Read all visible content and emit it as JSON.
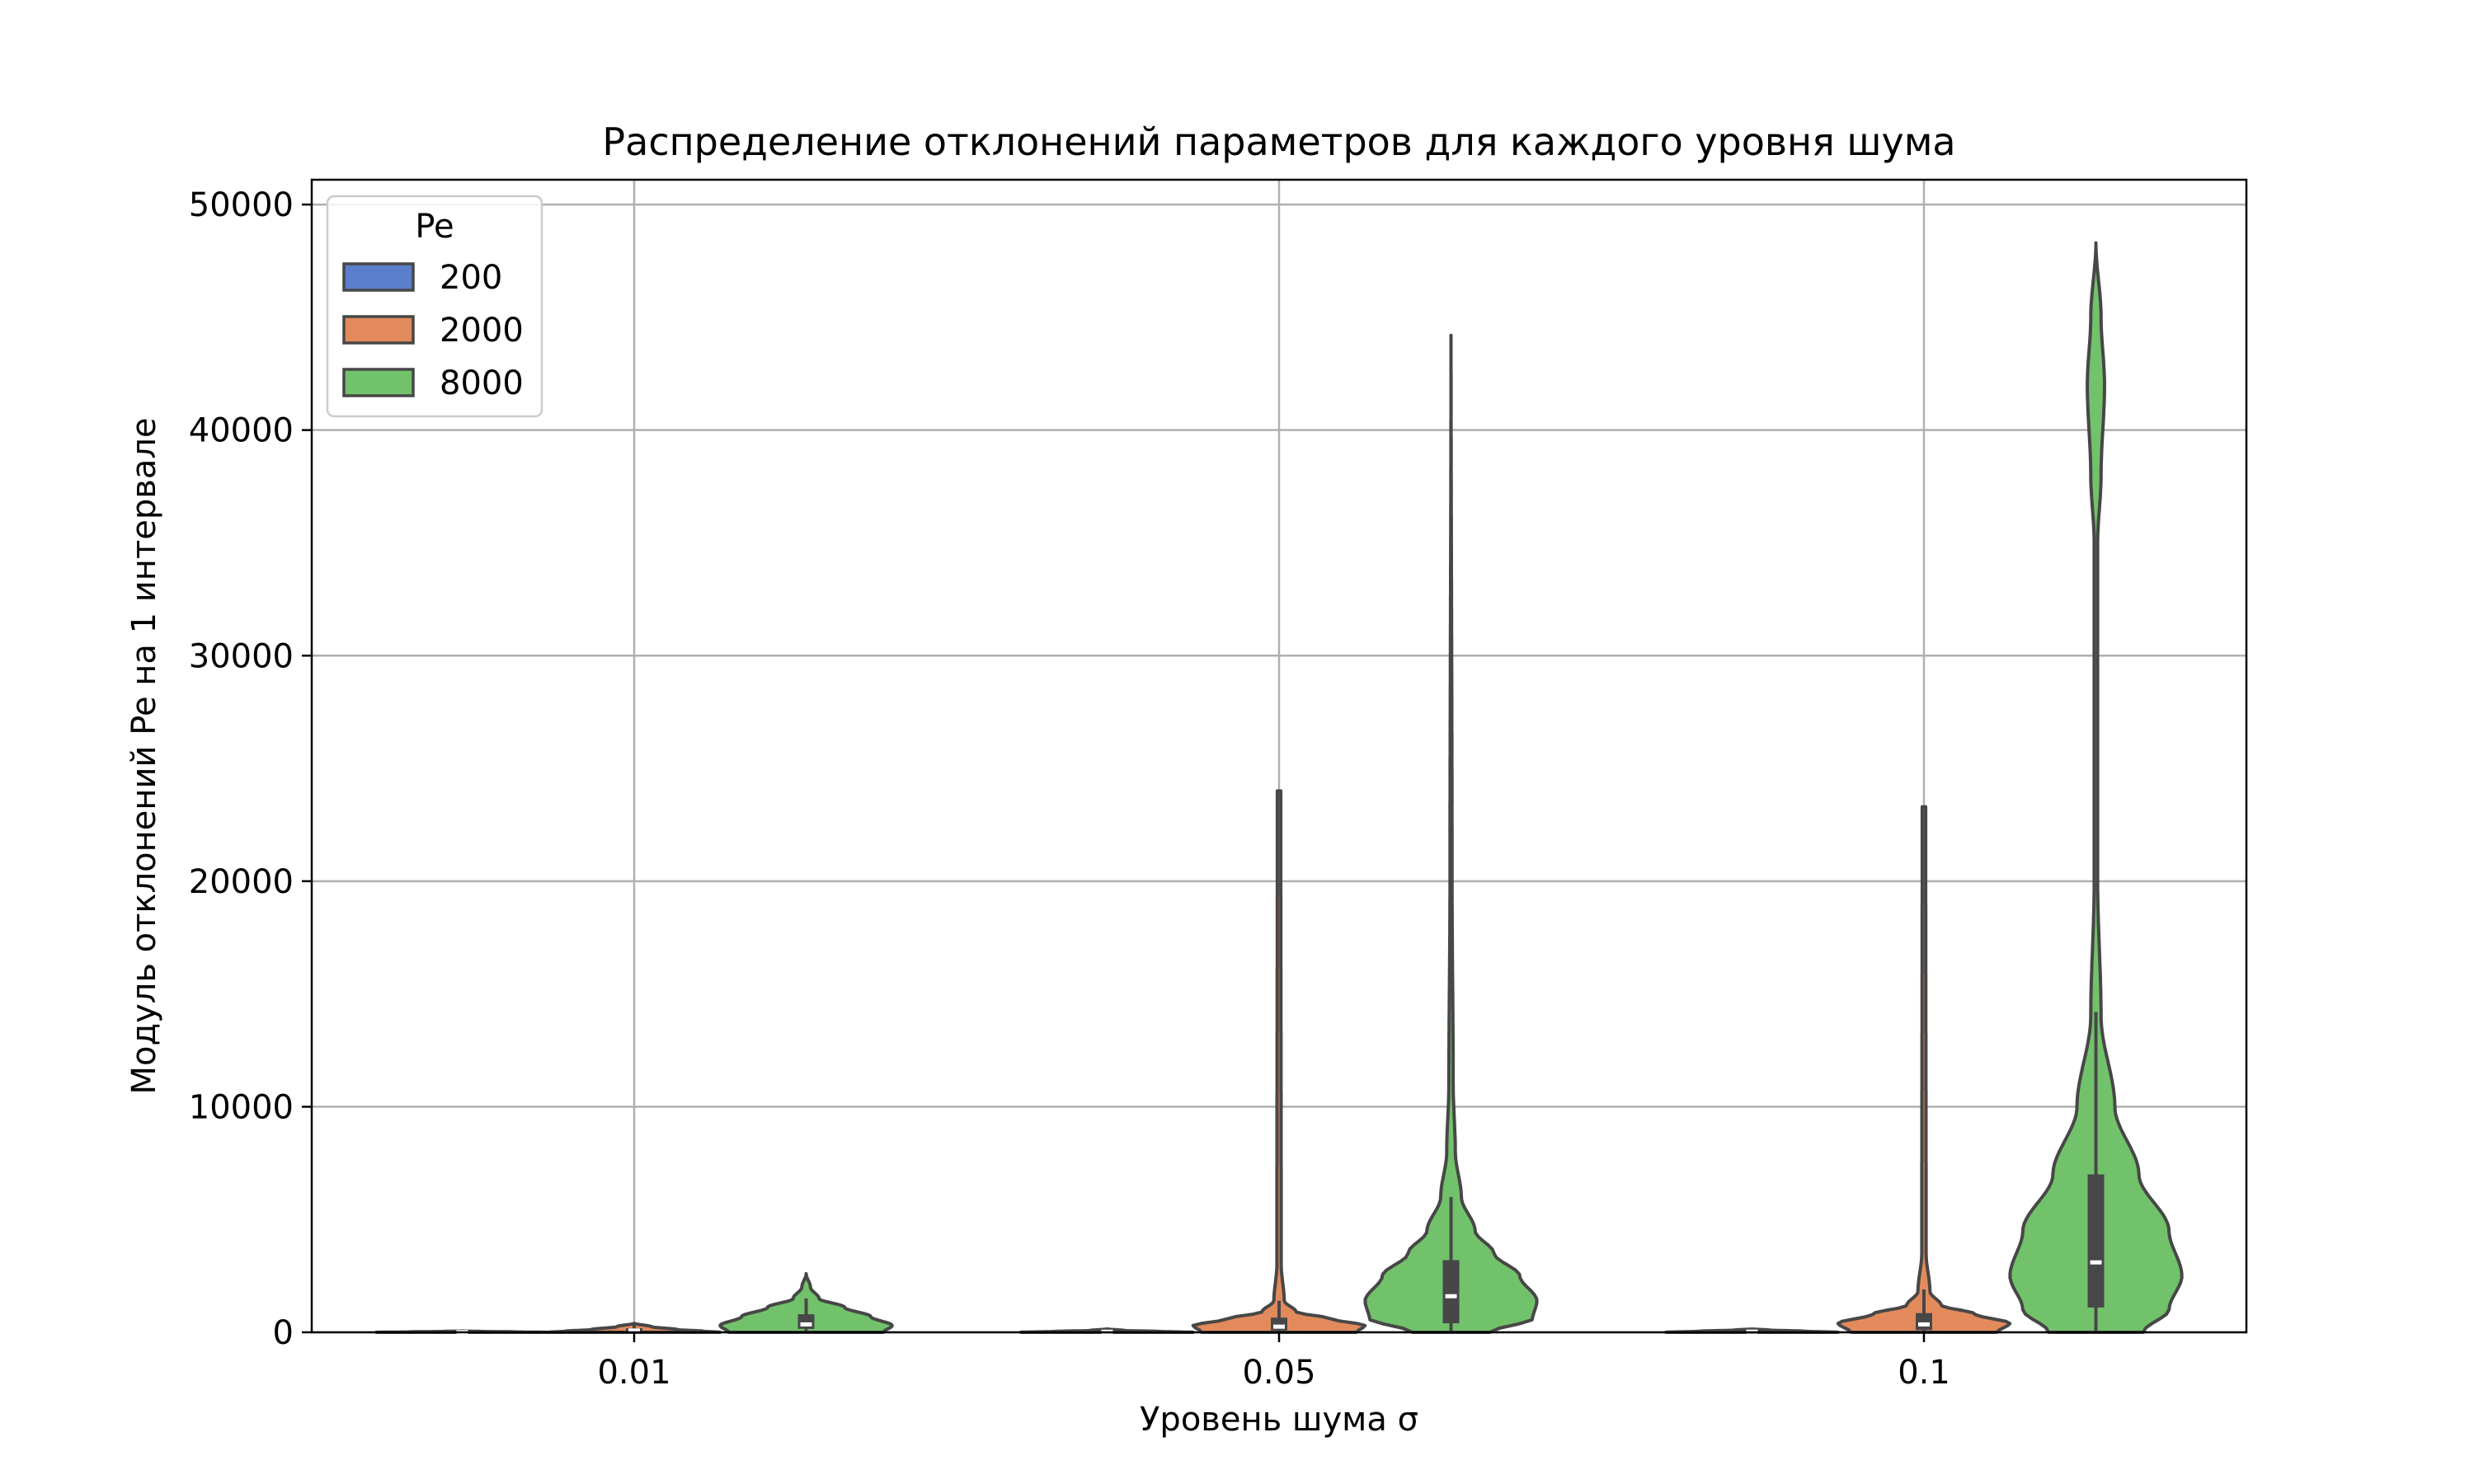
{
  "chart_data": {
    "type": "violin",
    "title": "Распределение отклонений параметров для каждого уровня шума",
    "xlabel": "Уровень шума σ",
    "ylabel": "Модуль отклонений Pe на 1 интервале",
    "categories": [
      "0.01",
      "0.05",
      "0.1"
    ],
    "ylim": [
      0,
      51000
    ],
    "yticks": [
      0,
      10000,
      20000,
      30000,
      40000,
      50000
    ],
    "ytick_labels": [
      "0",
      "10000",
      "20000",
      "30000",
      "40000",
      "50000"
    ],
    "grid": true,
    "legend": {
      "title": "Pe",
      "position": "top-left"
    },
    "series": [
      {
        "name": "200",
        "color": "#5a7fcd",
        "groups": [
          {
            "min": 0,
            "max": 60,
            "q1": 5,
            "median": 10,
            "q3": 20,
            "whisker_high": 50,
            "profile": [
              [
                0,
                1
              ],
              [
                20,
                0.6
              ],
              [
                40,
                0.2
              ],
              [
                60,
                0
              ]
            ]
          },
          {
            "min": 0,
            "max": 150,
            "q1": 10,
            "median": 25,
            "q3": 45,
            "whisker_high": 100,
            "profile": [
              [
                0,
                1
              ],
              [
                40,
                0.6
              ],
              [
                80,
                0.2
              ],
              [
                150,
                0
              ]
            ]
          },
          {
            "min": 0,
            "max": 150,
            "q1": 15,
            "median": 30,
            "q3": 60,
            "whisker_high": 120,
            "profile": [
              [
                0,
                1
              ],
              [
                50,
                0.6
              ],
              [
                100,
                0.2
              ],
              [
                150,
                0
              ]
            ]
          }
        ]
      },
      {
        "name": "2000",
        "color": "#e38a5c",
        "groups": [
          {
            "min": 0,
            "max": 400,
            "q1": 30,
            "median": 80,
            "q3": 180,
            "whisker_high": 380,
            "profile": [
              [
                0,
                1
              ],
              [
                50,
                0.8
              ],
              [
                120,
                0.5
              ],
              [
                250,
                0.2
              ],
              [
                400,
                0
              ]
            ]
          },
          {
            "min": 0,
            "max": 24000,
            "q1": 80,
            "median": 250,
            "q3": 650,
            "whisker_high": 1400,
            "profile": [
              [
                0,
                0.9
              ],
              [
                300,
                1
              ],
              [
                600,
                0.6
              ],
              [
                900,
                0.2
              ],
              [
                1400,
                0.06
              ],
              [
                3000,
                0.025
              ],
              [
                24000,
                0.02
              ]
            ]
          },
          {
            "min": 0,
            "max": 23300,
            "q1": 100,
            "median": 350,
            "q3": 850,
            "whisker_high": 1900,
            "profile": [
              [
                0,
                0.85
              ],
              [
                400,
                1
              ],
              [
                800,
                0.6
              ],
              [
                1200,
                0.2
              ],
              [
                1800,
                0.07
              ],
              [
                3500,
                0.025
              ],
              [
                23300,
                0.02
              ]
            ]
          }
        ]
      },
      {
        "name": "8000",
        "color": "#72c26b",
        "groups": [
          {
            "min": 0,
            "max": 2600,
            "q1": 150,
            "median": 350,
            "q3": 800,
            "whisker_high": 1500,
            "profile": [
              [
                0,
                0.9
              ],
              [
                300,
                1
              ],
              [
                700,
                0.75
              ],
              [
                1100,
                0.45
              ],
              [
                1500,
                0.15
              ],
              [
                2000,
                0.05
              ],
              [
                2600,
                0
              ]
            ]
          },
          {
            "min": 0,
            "max": 44200,
            "q1": 400,
            "median": 1600,
            "q3": 3200,
            "whisker_high": 6000,
            "profile": [
              [
                0,
                0.45
              ],
              [
                600,
                0.95
              ],
              [
                1400,
                1
              ],
              [
                2500,
                0.8
              ],
              [
                3500,
                0.5
              ],
              [
                4500,
                0.28
              ],
              [
                6000,
                0.12
              ],
              [
                8000,
                0.05
              ],
              [
                11000,
                0.025
              ],
              [
                20000,
                0.012
              ],
              [
                44200,
                0
              ]
            ]
          },
          {
            "min": 0,
            "max": 48300,
            "q1": 1100,
            "median": 3100,
            "q3": 7000,
            "whisker_high": 14200,
            "profile": [
              [
                0,
                0.55
              ],
              [
                1000,
                0.85
              ],
              [
                2500,
                1
              ],
              [
                4500,
                0.85
              ],
              [
                7000,
                0.5
              ],
              [
                10000,
                0.22
              ],
              [
                14000,
                0.06
              ],
              [
                20000,
                0.02
              ],
              [
                35000,
                0.02
              ],
              [
                38000,
                0.06
              ],
              [
                42000,
                0.1
              ],
              [
                45000,
                0.06
              ],
              [
                48300,
                0
              ]
            ]
          }
        ]
      }
    ]
  }
}
